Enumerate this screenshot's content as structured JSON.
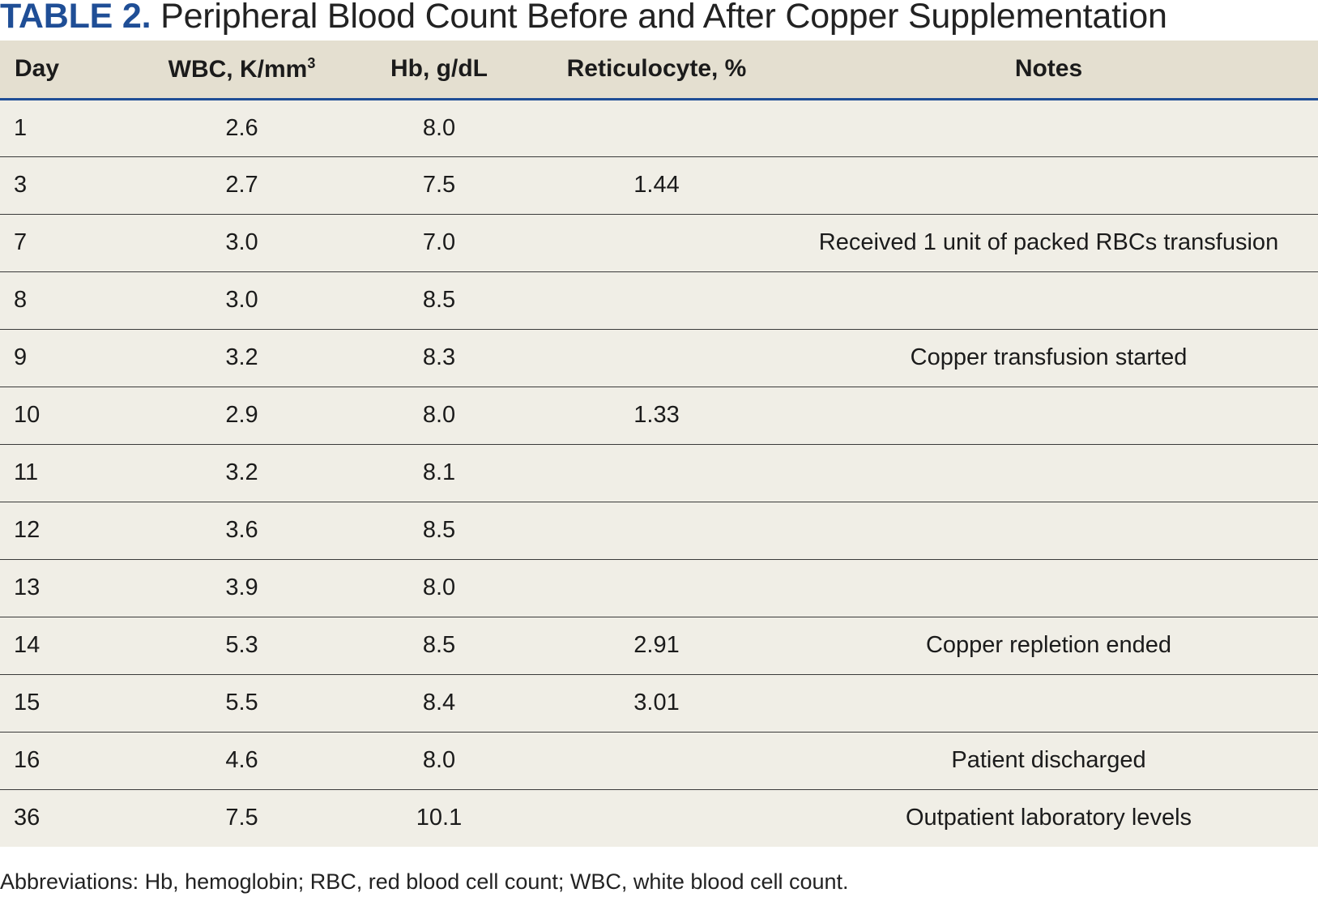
{
  "title": {
    "label": "TABLE 2.",
    "text": "Peripheral Blood Count Before and After Copper Supplementation"
  },
  "table": {
    "headers": {
      "day": "Day",
      "wbc": "WBC, K/mm",
      "wbc_sup": "3",
      "hb": "Hb, g/dL",
      "retic": "Reticulocyte, %",
      "notes": "Notes"
    },
    "rows": [
      {
        "day": "1",
        "wbc": "2.6",
        "hb": "8.0",
        "retic": "",
        "notes": ""
      },
      {
        "day": "3",
        "wbc": "2.7",
        "hb": "7.5",
        "retic": "1.44",
        "notes": ""
      },
      {
        "day": "7",
        "wbc": "3.0",
        "hb": "7.0",
        "retic": "",
        "notes": "Received 1 unit of packed RBCs transfusion"
      },
      {
        "day": "8",
        "wbc": "3.0",
        "hb": "8.5",
        "retic": "",
        "notes": ""
      },
      {
        "day": "9",
        "wbc": "3.2",
        "hb": "8.3",
        "retic": "",
        "notes": "Copper transfusion started"
      },
      {
        "day": "10",
        "wbc": "2.9",
        "hb": "8.0",
        "retic": "1.33",
        "notes": ""
      },
      {
        "day": "11",
        "wbc": "3.2",
        "hb": "8.1",
        "retic": "",
        "notes": ""
      },
      {
        "day": "12",
        "wbc": "3.6",
        "hb": "8.5",
        "retic": "",
        "notes": ""
      },
      {
        "day": "13",
        "wbc": "3.9",
        "hb": "8.0",
        "retic": "",
        "notes": ""
      },
      {
        "day": "14",
        "wbc": "5.3",
        "hb": "8.5",
        "retic": "2.91",
        "notes": "Copper repletion ended"
      },
      {
        "day": "15",
        "wbc": "5.5",
        "hb": "8.4",
        "retic": "3.01",
        "notes": ""
      },
      {
        "day": "16",
        "wbc": "4.6",
        "hb": "8.0",
        "retic": "",
        "notes": "Patient discharged"
      },
      {
        "day": "36",
        "wbc": "7.5",
        "hb": "10.1",
        "retic": "",
        "notes": "Outpatient laboratory levels"
      }
    ]
  },
  "footnote": "Abbreviations: Hb, hemoglobin; RBC, red blood cell count; WBC, white blood cell count.",
  "colors": {
    "accent": "#1f4e96",
    "header_bg": "#e4dfd0",
    "row_bg": "#f0eee6"
  }
}
